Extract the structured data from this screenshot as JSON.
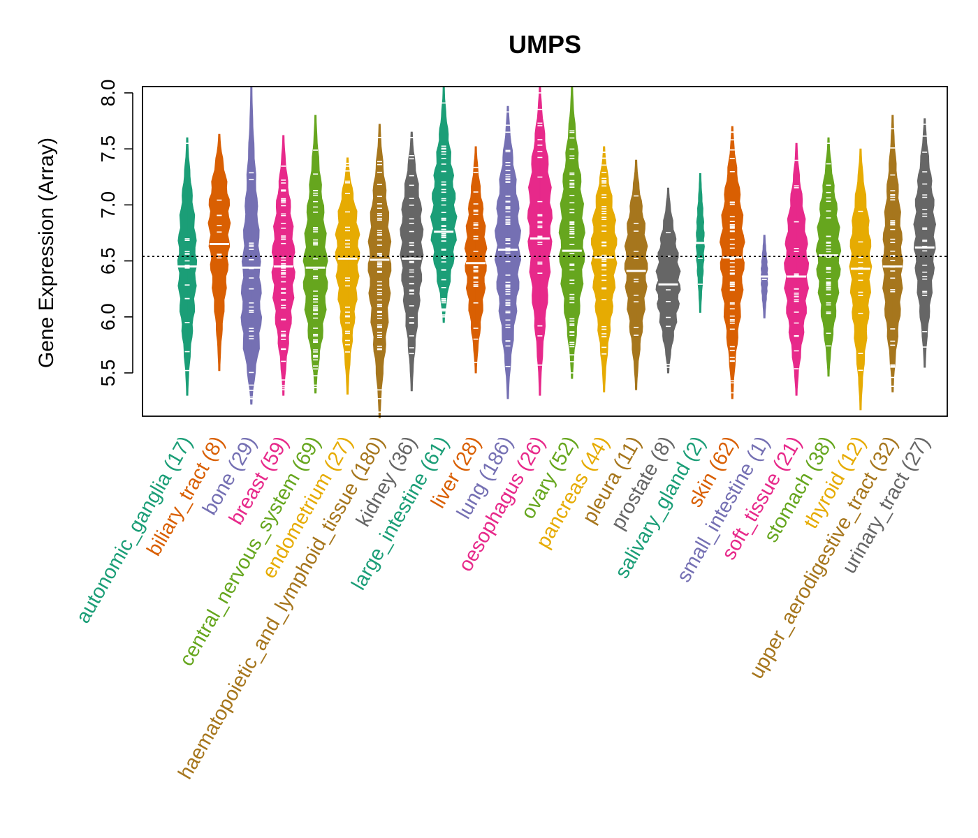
{
  "chart_data": {
    "type": "violin",
    "title": "UMPS",
    "xlabel": "",
    "ylabel": "Gene Expression (Array)",
    "ylim": [
      5.1,
      8.05
    ],
    "yticks": [
      "5.5",
      "6.0",
      "6.5",
      "7.0",
      "7.5",
      "8.0"
    ],
    "reference_line": 6.54,
    "point_color": "#ffffff",
    "categories": [
      {
        "name": "autonomic_ganglia",
        "count": "(17)",
        "color": "#1b9e77",
        "median": 6.45,
        "min": 5.3,
        "max": 7.6,
        "peak": 6.5,
        "width": 13
      },
      {
        "name": "biliary_tract",
        "count": "(8)",
        "color": "#d95f02",
        "median": 6.65,
        "min": 5.52,
        "max": 7.63,
        "peak": 6.9,
        "width": 15
      },
      {
        "name": "bone",
        "count": "(29)",
        "color": "#7570b3",
        "median": 6.44,
        "min": 5.22,
        "max": 8.05,
        "peak": 6.0,
        "width": 14
      },
      {
        "name": "breast",
        "count": "(59)",
        "color": "#e7298a",
        "median": 6.45,
        "min": 5.3,
        "max": 7.62,
        "peak": 6.45,
        "width": 16
      },
      {
        "name": "central_nervous_system",
        "count": "(69)",
        "color": "#66a61e",
        "median": 6.44,
        "min": 5.32,
        "max": 7.8,
        "peak": 6.35,
        "width": 17
      },
      {
        "name": "endometrium",
        "count": "(27)",
        "color": "#e6ab02",
        "median": 6.52,
        "min": 5.31,
        "max": 7.42,
        "peak": 6.65,
        "width": 17
      },
      {
        "name": "haematopoietic_and_lymphoid_tissue",
        "count": "(180)",
        "color": "#a6761d",
        "median": 6.51,
        "min": 5.1,
        "max": 7.72,
        "peak": 6.5,
        "width": 16
      },
      {
        "name": "kidney",
        "count": "(36)",
        "color": "#666666",
        "median": 6.52,
        "min": 5.34,
        "max": 7.65,
        "peak": 6.7,
        "width": 16
      },
      {
        "name": "large_intestine",
        "count": "(61)",
        "color": "#1b9e77",
        "median": 6.76,
        "min": 5.95,
        "max": 8.05,
        "peak": 6.8,
        "width": 18
      },
      {
        "name": "liver",
        "count": "(28)",
        "color": "#d95f02",
        "median": 6.48,
        "min": 5.5,
        "max": 7.52,
        "peak": 6.55,
        "width": 15
      },
      {
        "name": "lung",
        "count": "(186)",
        "color": "#7570b3",
        "median": 6.6,
        "min": 5.27,
        "max": 7.88,
        "peak": 6.65,
        "width": 18
      },
      {
        "name": "oesophagus",
        "count": "(26)",
        "color": "#e7298a",
        "median": 6.7,
        "min": 5.3,
        "max": 8.05,
        "peak": 6.9,
        "width": 17
      },
      {
        "name": "ovary",
        "count": "(52)",
        "color": "#66a61e",
        "median": 6.59,
        "min": 5.45,
        "max": 8.05,
        "peak": 6.65,
        "width": 18
      },
      {
        "name": "pancreas",
        "count": "(44)",
        "color": "#e6ab02",
        "median": 6.53,
        "min": 5.33,
        "max": 7.52,
        "peak": 6.65,
        "width": 18
      },
      {
        "name": "pleura",
        "count": "(11)",
        "color": "#a6761d",
        "median": 6.41,
        "min": 5.35,
        "max": 7.4,
        "peak": 6.5,
        "width": 16
      },
      {
        "name": "prostate",
        "count": "(8)",
        "color": "#666666",
        "median": 6.29,
        "min": 5.5,
        "max": 7.15,
        "peak": 6.3,
        "width": 17
      },
      {
        "name": "salivary_gland",
        "count": "(2)",
        "color": "#1b9e77",
        "median": 6.66,
        "min": 6.04,
        "max": 7.28,
        "peak": 6.66,
        "width": 5
      },
      {
        "name": "skin",
        "count": "(62)",
        "color": "#d95f02",
        "median": 6.53,
        "min": 5.27,
        "max": 7.7,
        "peak": 6.6,
        "width": 17
      },
      {
        "name": "small_intestine",
        "count": "(1)",
        "color": "#7570b3",
        "median": 6.36,
        "min": 5.99,
        "max": 6.73,
        "peak": 6.36,
        "width": 4
      },
      {
        "name": "soft_tissue",
        "count": "(21)",
        "color": "#e7298a",
        "median": 6.36,
        "min": 5.3,
        "max": 7.55,
        "peak": 6.4,
        "width": 17
      },
      {
        "name": "stomach",
        "count": "(38)",
        "color": "#66a61e",
        "median": 6.55,
        "min": 5.47,
        "max": 7.6,
        "peak": 6.55,
        "width": 17
      },
      {
        "name": "thyroid",
        "count": "(12)",
        "color": "#e6ab02",
        "median": 6.43,
        "min": 5.17,
        "max": 7.5,
        "peak": 6.5,
        "width": 15
      },
      {
        "name": "upper_aerodigestive_tract",
        "count": "(32)",
        "color": "#a6761d",
        "median": 6.45,
        "min": 5.33,
        "max": 7.8,
        "peak": 6.45,
        "width": 14
      },
      {
        "name": "urinary_tract",
        "count": "(27)",
        "color": "#666666",
        "median": 6.62,
        "min": 5.55,
        "max": 7.77,
        "peak": 6.75,
        "width": 15
      }
    ]
  }
}
